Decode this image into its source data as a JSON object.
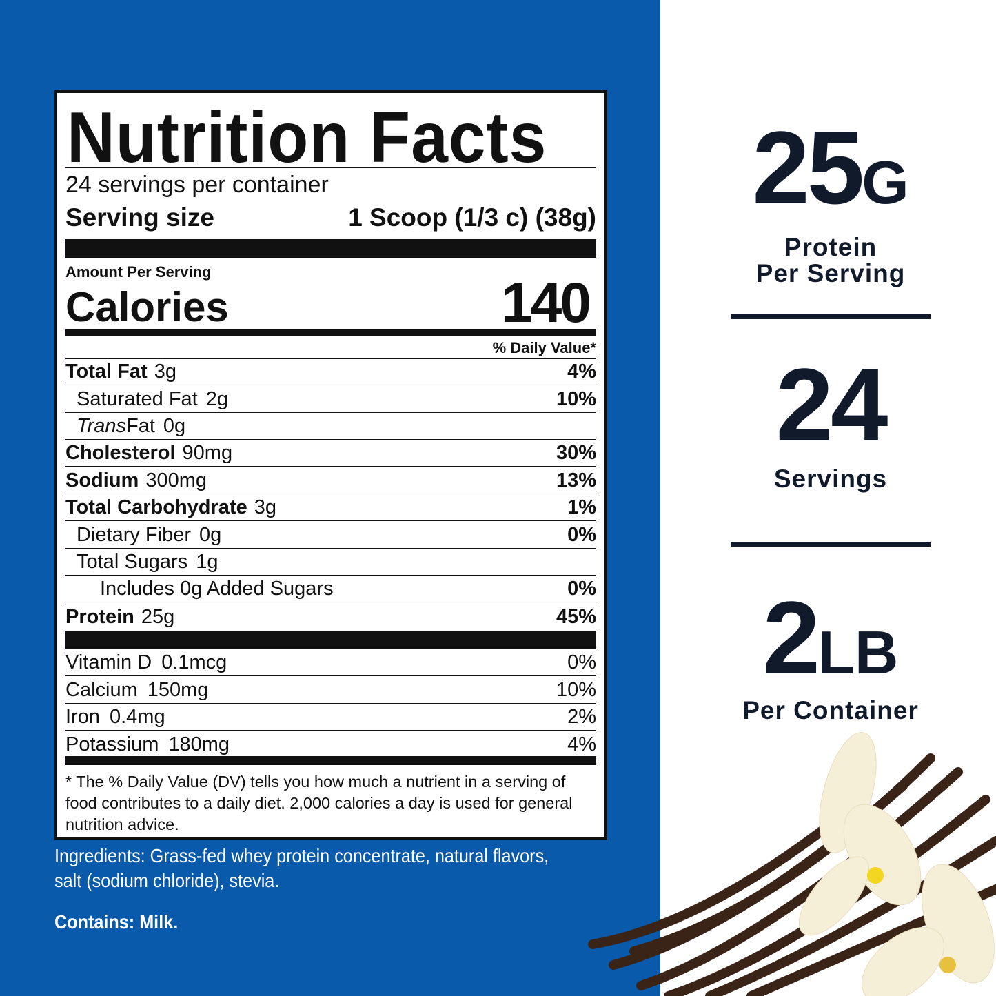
{
  "colors": {
    "panel_blue": "#0a5aac",
    "text_dark": "#101a2b"
  },
  "label": {
    "title": "Nutrition Facts",
    "servings_per_container": "24 servings per container",
    "serving_size_label": "Serving size",
    "serving_size_value": "1 Scoop (1/3 c) (38g)",
    "amount_per_serving": "Amount Per Serving",
    "calories_label": "Calories",
    "calories_value": "140",
    "dv_header": "% Daily Value*",
    "nutrients": [
      {
        "name": "Total Fat",
        "amount": "3g",
        "dv": "4%",
        "bold": true,
        "indent": 0
      },
      {
        "name": "Saturated Fat",
        "amount": "2g",
        "dv": "10%",
        "bold": false,
        "indent": 1
      },
      {
        "name": "Trans",
        "name_suffix": " Fat",
        "amount": "0g",
        "dv": "",
        "bold": false,
        "indent": 1,
        "italic": true
      },
      {
        "name": "Cholesterol",
        "amount": "90mg",
        "dv": "30%",
        "bold": true,
        "indent": 0
      },
      {
        "name": "Sodium",
        "amount": "300mg",
        "dv": "13%",
        "bold": true,
        "indent": 0
      },
      {
        "name": "Total Carbohydrate",
        "amount": "3g",
        "dv": "1%",
        "bold": true,
        "indent": 0
      },
      {
        "name": "Dietary Fiber",
        "amount": "0g",
        "dv": "0%",
        "bold": false,
        "indent": 1
      },
      {
        "name": "Total Sugars",
        "amount": "1g",
        "dv": "",
        "bold": false,
        "indent": 1
      },
      {
        "name": "Includes 0g Added Sugars",
        "amount": "",
        "dv": "0%",
        "bold": false,
        "indent": 2
      },
      {
        "name": "Protein",
        "amount": "25g",
        "dv": "45%",
        "bold": true,
        "indent": 0
      }
    ],
    "vitamins": [
      {
        "name": "Vitamin D",
        "amount": "0.1mcg",
        "dv": "0%"
      },
      {
        "name": "Calcium",
        "amount": "150mg",
        "dv": "10%"
      },
      {
        "name": "Iron",
        "amount": "0.4mg",
        "dv": "2%"
      },
      {
        "name": "Potassium",
        "amount": "180mg",
        "dv": "4%"
      }
    ],
    "footnote": "* The % Daily Value (DV) tells you how much a nutrient in a serving of food contributes to a daily diet. 2,000 calories a day is used for general nutrition advice."
  },
  "ingredients": {
    "line1": "Ingredients: Grass-fed whey protein concentrate, natural flavors,",
    "line2": "salt (sodium chloride), stevia.",
    "contains": "Contains: Milk."
  },
  "highlights": [
    {
      "number": "25",
      "unit": "G",
      "caption1": "Protein",
      "caption2": "Per Serving"
    },
    {
      "number": "24",
      "unit": "",
      "caption1": "Servings",
      "caption2": ""
    },
    {
      "number": "2",
      "unit": "LB",
      "caption1": "Per Container",
      "caption2": ""
    }
  ],
  "image": {
    "icon": "vanilla-beans-and-flowers-image"
  }
}
